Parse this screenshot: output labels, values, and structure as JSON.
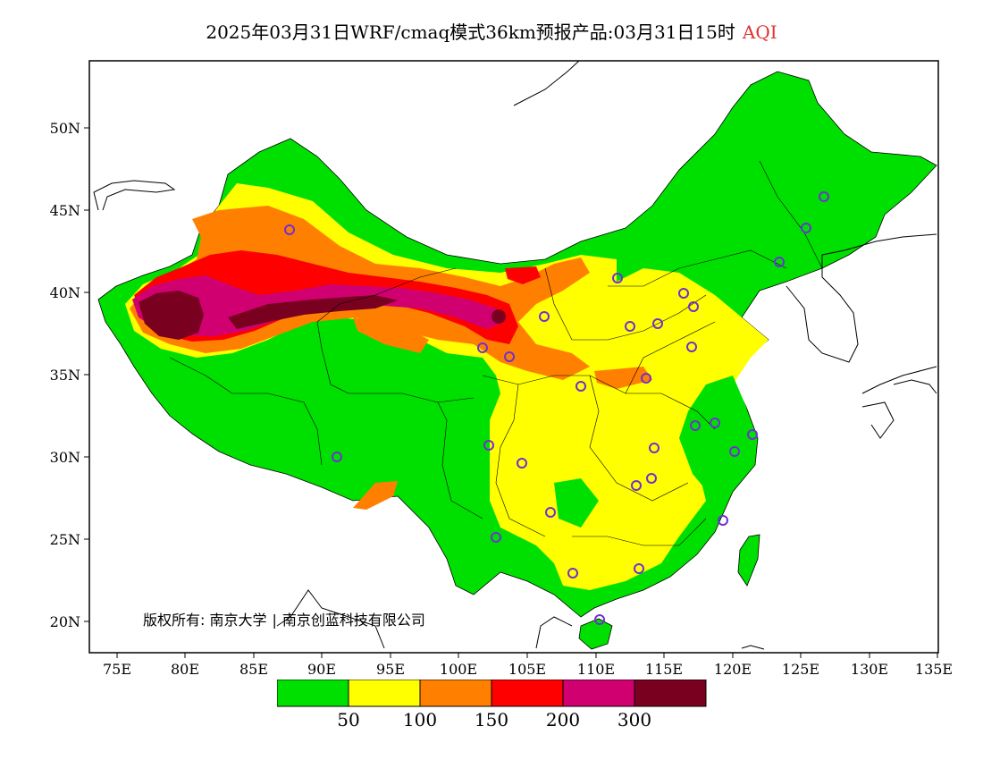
{
  "header": {
    "title": "2025年03月31日WRF/cmaq模式36km预报产品:03月31日15时",
    "variable": "AQI",
    "variable_color": "#e03030"
  },
  "map": {
    "lat_ticks": [
      "50N",
      "45N",
      "40N",
      "35N",
      "30N",
      "25N",
      "20N"
    ],
    "lon_ticks": [
      "75E",
      "80E",
      "85E",
      "90E",
      "95E",
      "100E",
      "105E",
      "110E",
      "115E",
      "120E",
      "125E",
      "130E",
      "135E"
    ],
    "copyright": {
      "label": "版权所有:",
      "org1": "南京大学",
      "org2": "南京创蓝科技有限公司"
    }
  },
  "legend": {
    "colors": [
      "#00e000",
      "#ffff00",
      "#ff8000",
      "#ff0000",
      "#d00070",
      "#7a0020"
    ],
    "labels": [
      "50",
      "100",
      "150",
      "200",
      "300"
    ]
  }
}
